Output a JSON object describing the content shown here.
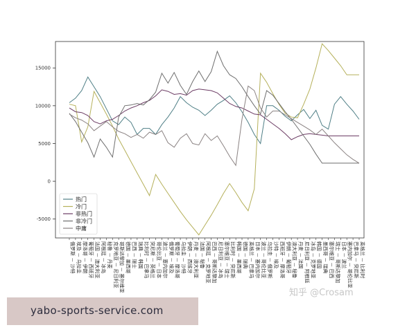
{
  "watermark": "知乎 @Crosam",
  "footer_text": "yabo-sports-service.com",
  "chart_data": {
    "type": "line",
    "title": "",
    "xlabel": "",
    "ylabel": "",
    "ylim": [
      -7500,
      18500
    ],
    "yticks": [
      -5000,
      0,
      5000,
      10000,
      15000
    ],
    "grid": false,
    "legend_position": "lower-left",
    "categories": [
      "俄罗斯 － 沙特",
      "埃及 － 乌拉圭",
      "摩洛哥 － 伊朗",
      "葡萄牙 － 西班牙",
      "法国 － 澳大利亚",
      "阿根廷 － 冰岛",
      "秘鲁 － 丹麦",
      "克罗地亚 － 尼日利亚",
      "哥斯达黎加 － 塞尔维亚",
      "德国 － 墨西哥",
      "巴西 － 瑞士",
      "瑞典 － 韩国",
      "比利时 － 巴拿马",
      "突尼斯 － 英格兰",
      "哥伦比亚 － 日本",
      "波兰 － 塞内加尔",
      "俄罗斯 － 埃及",
      "葡萄牙 － 摩洛哥",
      "乌拉圭 － 沙特",
      "伊朗 － 西班牙",
      "丹麦 － 澳大利亚",
      "法国 － 秘鲁",
      "阿根廷 － 克罗地亚",
      "巴西 － 哥斯达黎加",
      "尼日利亚 － 冰岛",
      "塞尔维亚 － 瑞士",
      "比利时 － 突尼斯",
      "韩国 － 墨西哥",
      "德国 － 瑞典",
      "英格兰 － 巴拿马",
      "日本 － 塞内加尔",
      "波兰 － 哥伦比亚",
      "乌拉圭 － 俄罗斯",
      "沙特 － 埃及",
      "西班牙 － 摩洛哥",
      "伊朗 － 葡萄牙",
      "澳大利亚 － 秘鲁",
      "丹麦 － 法国",
      "尼日利亚 － 阿根廷",
      "冰岛 － 克罗地亚",
      "韩国 － 德国",
      "墨西哥 － 瑞典",
      "塞尔维亚 － 巴西",
      "瑞士 － 哥斯达黎加",
      "日本 － 波兰",
      "塞内加尔 － 哥伦比亚",
      "巴拿马 － 突尼斯",
      "英格兰 － 比利时"
    ],
    "series": [
      {
        "name": "热门",
        "color": "#4f7f86",
        "values": [
          10400,
          11000,
          12000,
          13800,
          12500,
          11200,
          9600,
          8000,
          7500,
          8500,
          7800,
          6200,
          7000,
          7000,
          6200,
          7500,
          8500,
          9700,
          11200,
          10400,
          9800,
          9400,
          8700,
          9400,
          10200,
          10700,
          11300,
          10400,
          9200,
          7800,
          6200,
          5000,
          10000,
          10000,
          9400,
          8600,
          8000,
          8800,
          9500,
          8300,
          9400,
          7400,
          6900,
          10200,
          11200,
          10200,
          9300,
          8200
        ]
      },
      {
        "name": "冷门",
        "color": "#b5b05a",
        "values": [
          10200,
          10000,
          5200,
          7200,
          11900,
          10400,
          8900,
          7300,
          5600,
          4100,
          2600,
          1100,
          -400,
          -1900,
          900,
          -400,
          -1600,
          -2800,
          -4000,
          -5100,
          -6100,
          -7100,
          -5800,
          -4500,
          -3100,
          -1600,
          -300,
          -1500,
          -2800,
          -3900,
          -1000,
          14300,
          13100,
          11600,
          10200,
          9000,
          8500,
          8400,
          10200,
          12200,
          15000,
          18200,
          17300,
          16300,
          15300,
          14100,
          14100,
          14100
        ]
      },
      {
        "name": "非热门",
        "color": "#6b3b63",
        "values": [
          9700,
          9200,
          9100,
          8700,
          7900,
          7600,
          8000,
          8200,
          8700,
          9300,
          9700,
          10000,
          10400,
          10700,
          11300,
          12100,
          11900,
          11500,
          11600,
          11400,
          12000,
          12200,
          12100,
          12000,
          11700,
          11000,
          10300,
          9900,
          9700,
          9300,
          8900,
          8800,
          8200,
          7600,
          7000,
          6300,
          5500,
          5900,
          6200,
          6300,
          6200,
          6100,
          6000,
          6000,
          6000,
          6000,
          6000,
          6000
        ]
      },
      {
        "name": "非冷门",
        "color": "#6e6e6e",
        "values": [
          9000,
          7900,
          6500,
          5100,
          3200,
          5600,
          4500,
          3200,
          8500,
          10000,
          10100,
          10300,
          10100,
          10800,
          11800,
          14300,
          13000,
          14400,
          12700,
          11500,
          13200,
          14600,
          13200,
          14500,
          17200,
          15300,
          14100,
          13600,
          12500,
          11200,
          10000,
          8900,
          12000,
          11400,
          10300,
          9200,
          8200,
          7100,
          6000,
          4900,
          3600,
          2400,
          2400,
          2400,
          2400,
          2400,
          2400,
          2400
        ]
      },
      {
        "name": "中庸",
        "color": "#8a8282",
        "values": [
          8900,
          8400,
          8100,
          7600,
          6700,
          7300,
          7900,
          7200,
          6600,
          6300,
          5800,
          6200,
          5700,
          6500,
          6200,
          6700,
          5100,
          4500,
          5700,
          6300,
          5000,
          4800,
          6300,
          5400,
          6000,
          4700,
          3300,
          2100,
          8200,
          12600,
          12000,
          9700,
          8500,
          9300,
          9300,
          8800,
          8300,
          7800,
          7300,
          6800,
          6200,
          6900,
          6000,
          5100,
          4300,
          3500,
          2900,
          2400
        ]
      }
    ]
  }
}
